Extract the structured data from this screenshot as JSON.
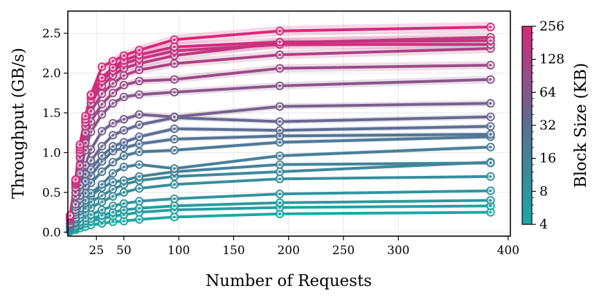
{
  "chart_data": {
    "type": "line",
    "xlabel": "Number of Requests",
    "ylabel": "Throughput (GB/s)",
    "xlim": [
      -1,
      402
    ],
    "ylim": [
      -0.05,
      2.78
    ],
    "x_ticks": [
      25,
      50,
      100,
      150,
      200,
      250,
      300,
      400
    ],
    "y_ticks": [
      0.0,
      0.5,
      1.0,
      1.5,
      2.0,
      2.5
    ],
    "x_tick_labels": [
      "25",
      "50",
      "100",
      "150",
      "200",
      "250",
      "300",
      "400"
    ],
    "y_tick_labels": [
      "0.0",
      "0.5",
      "1.0",
      "1.5",
      "2.0",
      "2.5"
    ],
    "grid": true,
    "marker": "circle-dot",
    "x": [
      1,
      6,
      10,
      15,
      20,
      30,
      40,
      50,
      64,
      96,
      192,
      384
    ],
    "colorbar": {
      "label": "Block Size (KB)",
      "scale": "log2",
      "range": [
        4,
        256
      ],
      "ticks": [
        4,
        8,
        16,
        32,
        64,
        128,
        256
      ],
      "tick_labels": [
        "4",
        "8",
        "16",
        "32",
        "64",
        "128",
        "256"
      ],
      "colormap": [
        "#1aa8a3",
        "#5a6f93",
        "#d6297a"
      ]
    },
    "series": [
      {
        "block_kb": 4.0,
        "values": [
          0.01,
          0.03,
          0.05,
          0.07,
          0.09,
          0.11,
          0.13,
          0.14,
          0.16,
          0.19,
          0.23,
          0.25
        ]
      },
      {
        "block_kb": 5.0,
        "values": [
          0.02,
          0.05,
          0.08,
          0.11,
          0.14,
          0.17,
          0.2,
          0.22,
          0.25,
          0.28,
          0.31,
          0.33
        ]
      },
      {
        "block_kb": 6.5,
        "values": [
          0.02,
          0.06,
          0.1,
          0.14,
          0.17,
          0.21,
          0.25,
          0.28,
          0.3,
          0.33,
          0.37,
          0.4
        ]
      },
      {
        "block_kb": 8.0,
        "values": [
          0.03,
          0.08,
          0.13,
          0.18,
          0.22,
          0.28,
          0.33,
          0.36,
          0.39,
          0.42,
          0.48,
          0.52
        ]
      },
      {
        "block_kb": 10.0,
        "values": [
          0.04,
          0.11,
          0.18,
          0.25,
          0.31,
          0.38,
          0.45,
          0.5,
          0.55,
          0.6,
          0.67,
          0.7
        ]
      },
      {
        "block_kb": 12.5,
        "values": [
          0.04,
          0.13,
          0.22,
          0.3,
          0.38,
          0.46,
          0.54,
          0.6,
          0.65,
          0.7,
          0.76,
          0.88
        ]
      },
      {
        "block_kb": 15.0,
        "values": [
          0.05,
          0.16,
          0.27,
          0.37,
          0.46,
          0.56,
          0.63,
          0.65,
          0.7,
          0.76,
          0.85,
          0.87
        ]
      },
      {
        "block_kb": 18.0,
        "values": [
          0.06,
          0.18,
          0.3,
          0.4,
          0.49,
          0.6,
          0.74,
          0.82,
          0.85,
          0.8,
          0.96,
          1.07
        ]
      },
      {
        "block_kb": 22.0,
        "values": [
          0.07,
          0.22,
          0.36,
          0.49,
          0.62,
          0.76,
          0.88,
          0.96,
          1.01,
          1.03,
          1.13,
          1.2
        ]
      },
      {
        "block_kb": 27.0,
        "values": [
          0.08,
          0.25,
          0.42,
          0.58,
          0.71,
          0.89,
          1.02,
          1.06,
          1.11,
          1.17,
          1.21,
          1.23
        ]
      },
      {
        "block_kb": 33.0,
        "values": [
          0.09,
          0.28,
          0.46,
          0.64,
          0.79,
          0.96,
          1.08,
          1.13,
          1.2,
          1.3,
          1.28,
          1.33
        ]
      },
      {
        "block_kb": 40.0,
        "values": [
          0.1,
          0.32,
          0.53,
          0.73,
          0.9,
          1.08,
          1.22,
          1.28,
          1.35,
          1.44,
          1.39,
          1.45
        ]
      },
      {
        "block_kb": 52.0,
        "values": [
          0.11,
          0.35,
          0.59,
          0.84,
          1.04,
          1.27,
          1.37,
          1.42,
          1.48,
          1.45,
          1.58,
          1.62
        ]
      },
      {
        "block_kb": 70.0,
        "values": [
          0.14,
          0.45,
          0.74,
          1.03,
          1.26,
          1.48,
          1.62,
          1.7,
          1.73,
          1.76,
          1.84,
          1.92
        ]
      },
      {
        "block_kb": 95.0,
        "values": [
          0.16,
          0.5,
          0.84,
          1.12,
          1.39,
          1.61,
          1.75,
          1.85,
          1.9,
          1.92,
          2.06,
          2.1
        ]
      },
      {
        "block_kb": 125.0,
        "values": [
          0.18,
          0.56,
          0.94,
          1.25,
          1.52,
          1.74,
          1.87,
          1.97,
          2.04,
          2.12,
          2.23,
          2.31
        ]
      },
      {
        "block_kb": 160.0,
        "values": [
          0.19,
          0.6,
          1.0,
          1.33,
          1.62,
          1.84,
          1.97,
          2.06,
          2.12,
          2.22,
          2.38,
          2.45
        ]
      },
      {
        "block_kb": 195.0,
        "values": [
          0.2,
          0.62,
          1.04,
          1.38,
          1.67,
          1.9,
          2.03,
          2.12,
          2.18,
          2.28,
          2.36,
          2.36
        ]
      },
      {
        "block_kb": 225.0,
        "values": [
          0.2,
          0.64,
          1.07,
          1.42,
          1.71,
          1.94,
          2.07,
          2.16,
          2.23,
          2.33,
          2.39,
          2.41
        ]
      },
      {
        "block_kb": 256.0,
        "values": [
          0.21,
          0.66,
          1.1,
          1.46,
          1.73,
          2.08,
          2.15,
          2.22,
          2.29,
          2.42,
          2.53,
          2.58
        ]
      }
    ]
  }
}
